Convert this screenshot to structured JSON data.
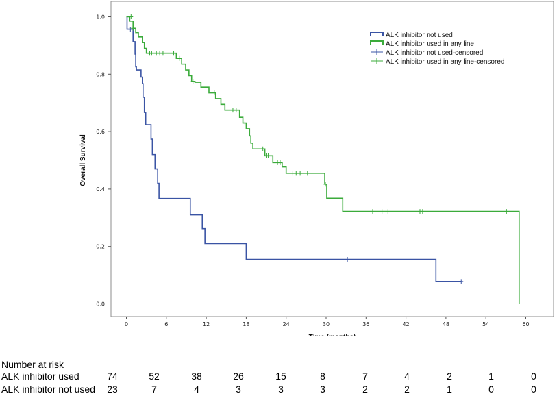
{
  "chart_data": {
    "type": "line",
    "subtype": "kaplan-meier step",
    "xlabel": "Time (months)",
    "ylabel": "Overall Survival",
    "xlim": [
      -2.5,
      62
    ],
    "ylim": [
      -0.05,
      1.05
    ],
    "xticks": [
      0,
      6,
      12,
      18,
      24,
      30,
      36,
      42,
      48,
      54,
      60
    ],
    "yticks": [
      0.0,
      0.2,
      0.4,
      0.6,
      0.8,
      1.0
    ],
    "ytick_labels": [
      "0.0",
      "0.2",
      "0.4",
      "0.6",
      "0.8",
      "1.0"
    ],
    "grid": false,
    "legend_position": "top-right",
    "legend": [
      {
        "label": "ALK inhibitor not used",
        "color": "#3a54a4",
        "marker": "line"
      },
      {
        "label": "ALK inhibitor used in any line",
        "color": "#3bab3b",
        "marker": "line"
      },
      {
        "label": "ALK inhibitor not used-censored",
        "color": "#3a54a4",
        "marker": "plus"
      },
      {
        "label": "ALK inhibitor used in any line-censored",
        "color": "#3bab3b",
        "marker": "plus"
      }
    ],
    "series": [
      {
        "name": "ALK inhibitor not used",
        "color": "#3a54a4",
        "steps": [
          [
            0,
            1.0
          ],
          [
            0.1,
            0.957
          ],
          [
            1.0,
            0.913
          ],
          [
            1.3,
            0.87
          ],
          [
            1.4,
            0.826
          ],
          [
            1.5,
            0.815
          ],
          [
            2.2,
            0.79
          ],
          [
            2.4,
            0.767
          ],
          [
            2.5,
            0.72
          ],
          [
            2.7,
            0.667
          ],
          [
            2.9,
            0.624
          ],
          [
            3.7,
            0.574
          ],
          [
            3.9,
            0.52
          ],
          [
            4.3,
            0.47
          ],
          [
            4.7,
            0.42
          ],
          [
            4.9,
            0.367
          ],
          [
            9.6,
            0.31
          ],
          [
            11.4,
            0.262
          ],
          [
            11.8,
            0.21
          ],
          [
            18.0,
            0.155
          ],
          [
            46.5,
            0.078
          ],
          [
            50.3,
            0.078
          ]
        ],
        "censored": [
          [
            0.6,
            0.957
          ],
          [
            33.2,
            0.155
          ],
          [
            50.3,
            0.078
          ]
        ]
      },
      {
        "name": "ALK inhibitor used in any line",
        "color": "#3bab3b",
        "steps": [
          [
            0,
            1.0
          ],
          [
            0.5,
            0.985
          ],
          [
            1.0,
            0.96
          ],
          [
            1.4,
            0.945
          ],
          [
            1.8,
            0.93
          ],
          [
            2.4,
            0.91
          ],
          [
            2.7,
            0.89
          ],
          [
            3.0,
            0.873
          ],
          [
            7.5,
            0.855
          ],
          [
            8.3,
            0.835
          ],
          [
            8.9,
            0.815
          ],
          [
            9.4,
            0.795
          ],
          [
            9.8,
            0.775
          ],
          [
            10.3,
            0.772
          ],
          [
            11.2,
            0.755
          ],
          [
            12.4,
            0.735
          ],
          [
            13.4,
            0.715
          ],
          [
            14.2,
            0.695
          ],
          [
            14.8,
            0.675
          ],
          [
            17.0,
            0.65
          ],
          [
            17.5,
            0.63
          ],
          [
            18.0,
            0.61
          ],
          [
            18.5,
            0.585
          ],
          [
            18.7,
            0.56
          ],
          [
            19.0,
            0.54
          ],
          [
            20.8,
            0.516
          ],
          [
            22.0,
            0.492
          ],
          [
            23.4,
            0.477
          ],
          [
            24.0,
            0.455
          ],
          [
            29.8,
            0.417
          ],
          [
            30.1,
            0.368
          ],
          [
            32.5,
            0.322
          ],
          [
            59.0,
            0.0
          ]
        ],
        "censored": [
          [
            0.7,
            1.0
          ],
          [
            1.0,
            0.96
          ],
          [
            3.5,
            0.873
          ],
          [
            3.8,
            0.873
          ],
          [
            4.5,
            0.873
          ],
          [
            5.0,
            0.873
          ],
          [
            5.5,
            0.873
          ],
          [
            7.1,
            0.873
          ],
          [
            8.0,
            0.855
          ],
          [
            10.0,
            0.775
          ],
          [
            10.6,
            0.772
          ],
          [
            13.2,
            0.735
          ],
          [
            16.0,
            0.675
          ],
          [
            16.5,
            0.675
          ],
          [
            17.8,
            0.63
          ],
          [
            20.5,
            0.54
          ],
          [
            21.0,
            0.516
          ],
          [
            21.3,
            0.516
          ],
          [
            22.7,
            0.492
          ],
          [
            23.1,
            0.492
          ],
          [
            25.0,
            0.455
          ],
          [
            25.5,
            0.455
          ],
          [
            26.1,
            0.455
          ],
          [
            27.2,
            0.455
          ],
          [
            29.9,
            0.417
          ],
          [
            37.0,
            0.322
          ],
          [
            38.4,
            0.322
          ],
          [
            39.3,
            0.322
          ],
          [
            44.1,
            0.322
          ],
          [
            44.5,
            0.322
          ],
          [
            57.1,
            0.322
          ]
        ]
      }
    ]
  },
  "risk_table": {
    "title": "Number at risk",
    "rows": [
      {
        "label": "ALK inhibitor used",
        "values": [
          "74",
          "52",
          "38",
          "26",
          "15",
          "8",
          "7",
          "4",
          "2",
          "1",
          "0"
        ]
      },
      {
        "label": "ALK inhibitor not used",
        "values": [
          "23",
          "7",
          "4",
          "3",
          "3",
          "3",
          "2",
          "2",
          "1",
          "0",
          "0"
        ]
      }
    ]
  }
}
